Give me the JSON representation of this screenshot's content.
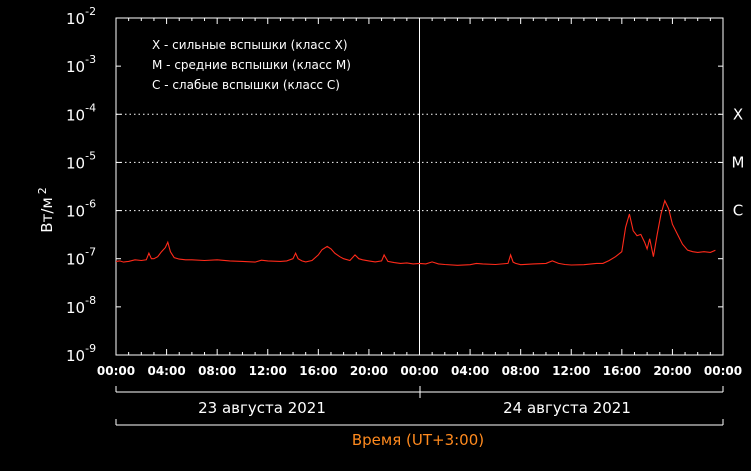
{
  "chart_data": {
    "type": "line",
    "x_unit": "hours since 2021-08-23 00:00 (UT+3:00)",
    "ylabel_base": "Вт/м",
    "ylabel_exp": "2",
    "xlabel": "Время (UT+3:00)",
    "y_scale": "log",
    "ylim_exp": [
      -9,
      -2
    ],
    "xlim": [
      0,
      48
    ],
    "x_tick_labels": [
      "00:00",
      "04:00",
      "08:00",
      "12:00",
      "16:00",
      "20:00",
      "00:00",
      "04:00",
      "08:00",
      "12:00",
      "16:00",
      "20:00",
      "00:00"
    ],
    "y_ticks": [
      {
        "base": "10",
        "exp": "-2"
      },
      {
        "base": "10",
        "exp": "-3"
      },
      {
        "base": "10",
        "exp": "-4"
      },
      {
        "base": "10",
        "exp": "-5"
      },
      {
        "base": "10",
        "exp": "-6"
      },
      {
        "base": "10",
        "exp": "-7"
      },
      {
        "base": "10",
        "exp": "-8"
      },
      {
        "base": "10",
        "exp": "-9"
      }
    ],
    "flare_classes": [
      {
        "label": "X",
        "level_exp": -4
      },
      {
        "label": "M",
        "level_exp": -5
      },
      {
        "label": "C",
        "level_exp": -6
      }
    ],
    "legend": [
      "X - сильные вспышки (класс X)",
      "M - средние вспышки (класс M)",
      "C - слабые вспышки (класс C)"
    ],
    "day_labels": [
      "23 августа 2021",
      "24 августа 2021"
    ],
    "day_divider_hour": 24,
    "colors": {
      "series": "#ff2a1a",
      "grid": "#ffffff",
      "xlabel": "#ff8a1e",
      "background": "#000000",
      "text": "#ffffff"
    },
    "series": [
      {
        "x": [
          0,
          0.3,
          0.6,
          1.0,
          1.5,
          2.0,
          2.4,
          2.6,
          2.8,
          3.0,
          3.3,
          3.6,
          3.9,
          4.1,
          4.3,
          4.6,
          5.0,
          5.5,
          6.0,
          7.0,
          8.0,
          9.0,
          10.0,
          11.0,
          11.5,
          12.0,
          13.0,
          13.5,
          14.0,
          14.2,
          14.4,
          14.7,
          15.0,
          15.5,
          16.0,
          16.3,
          16.7,
          17.0,
          17.3,
          17.7,
          18.0,
          18.5,
          18.9,
          19.2,
          19.5,
          20.0,
          20.5,
          21.0,
          21.2,
          21.5,
          22.0,
          22.5,
          23.0,
          23.5,
          24.0,
          24.5,
          25.0,
          25.5,
          26.0,
          27.0,
          28.0,
          28.5,
          29.0,
          30.0,
          31.0,
          31.2,
          31.4,
          31.6,
          32.0,
          33.0,
          34.0,
          34.5,
          35.0,
          35.5,
          36.0,
          37.0,
          38.0,
          38.5,
          39.0,
          39.5,
          40.0,
          40.3,
          40.6,
          40.9,
          41.2,
          41.5,
          41.8,
          42.0,
          42.2,
          42.5,
          42.8,
          43.1,
          43.4,
          43.7,
          44.0,
          44.4,
          44.8,
          45.2,
          45.6,
          46.0,
          46.5,
          47.0,
          47.4
        ],
        "y": [
          8.8e-08,
          9e-08,
          8.5e-08,
          8.8e-08,
          9.5e-08,
          9.2e-08,
          9.5e-08,
          1.3e-07,
          1e-07,
          1e-07,
          1.1e-07,
          1.4e-07,
          1.7e-07,
          2.2e-07,
          1.4e-07,
          1.05e-07,
          9.8e-08,
          9.5e-08,
          9.5e-08,
          9.2e-08,
          9.5e-08,
          9e-08,
          8.8e-08,
          8.5e-08,
          9.3e-08,
          9e-08,
          8.8e-08,
          9e-08,
          1e-07,
          1.3e-07,
          1e-07,
          9e-08,
          8.6e-08,
          9.2e-08,
          1.2e-07,
          1.55e-07,
          1.8e-07,
          1.6e-07,
          1.3e-07,
          1.1e-07,
          1e-07,
          9.2e-08,
          1.2e-07,
          1e-07,
          9.5e-08,
          9e-08,
          8.6e-08,
          9e-08,
          1.2e-07,
          8.8e-08,
          8.3e-08,
          8e-08,
          8.2e-08,
          7.8e-08,
          8e-08,
          7.8e-08,
          8.6e-08,
          7.8e-08,
          7.6e-08,
          7.3e-08,
          7.5e-08,
          8e-08,
          7.8e-08,
          7.6e-08,
          8e-08,
          1.2e-07,
          8.5e-08,
          8e-08,
          7.5e-08,
          7.8e-08,
          8e-08,
          9e-08,
          8e-08,
          7.6e-08,
          7.4e-08,
          7.5e-08,
          8e-08,
          8e-08,
          9.2e-08,
          1.1e-07,
          1.4e-07,
          4.5e-07,
          8.5e-07,
          3.8e-07,
          3e-07,
          3.2e-07,
          2.2e-07,
          1.6e-07,
          2.6e-07,
          1.1e-07,
          3.2e-07,
          8.5e-07,
          1.6e-06,
          1.1e-06,
          5.2e-07,
          3.2e-07,
          2e-07,
          1.5e-07,
          1.4e-07,
          1.35e-07,
          1.4e-07,
          1.35e-07,
          1.5e-07
        ]
      }
    ]
  }
}
